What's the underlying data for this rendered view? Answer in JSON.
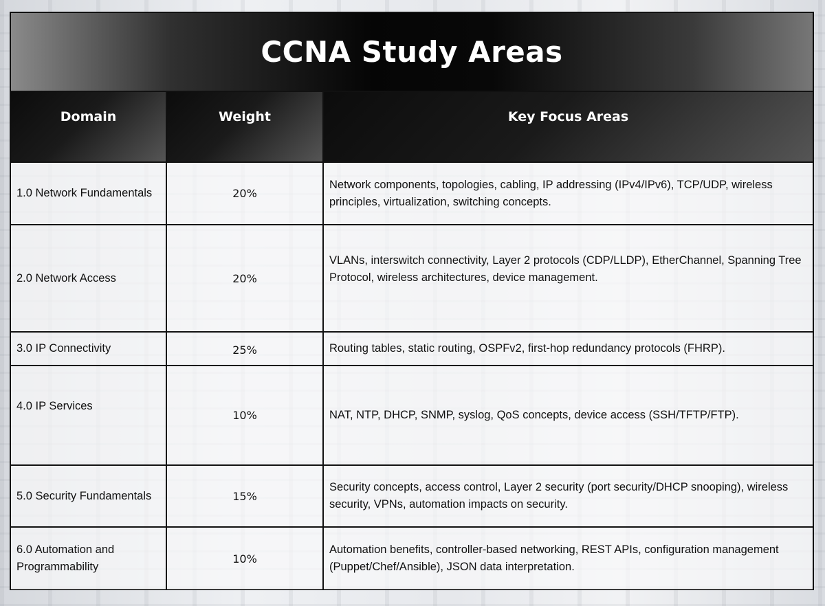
{
  "title": "CCNA Study Areas",
  "headers": {
    "domain": "Domain",
    "weight": "Weight",
    "focus": "Key Focus Areas"
  },
  "rows": [
    {
      "domain": "1.0 Network Fundamentals",
      "weight": "20%",
      "focus": "Network components, topologies, cabling, IP addressing (IPv4/IPv6), TCP/UDP, wireless principles, virtualization, switching concepts."
    },
    {
      "domain": "2.0 Network Access",
      "weight": "20%",
      "focus": "VLANs, interswitch connectivity, Layer 2 protocols (CDP/LLDP), EtherChannel, Spanning Tree Protocol, wireless architectures, device management."
    },
    {
      "domain": "3.0 IP Connectivity",
      "weight": "25%",
      "focus": "Routing tables, static routing, OSPFv2, first-hop redundancy protocols (FHRP)."
    },
    {
      "domain": "4.0 IP Services",
      "weight": "10%",
      "focus": "NAT, NTP, DHCP, SNMP, syslog, QoS concepts, device access (SSH/TFTP/FTP)."
    },
    {
      "domain": "5.0 Security Fundamentals",
      "weight": "15%",
      "focus": "Security concepts, access control, Layer 2 security (port security/DHCP snooping), wireless security, VPNs, automation impacts on security."
    },
    {
      "domain": "6.0 Automation and Programmability",
      "weight": "10%",
      "focus": "Automation benefits, controller-based networking, REST APIs, configuration management (Puppet/Chef/Ansible), JSON data interpretation."
    }
  ]
}
